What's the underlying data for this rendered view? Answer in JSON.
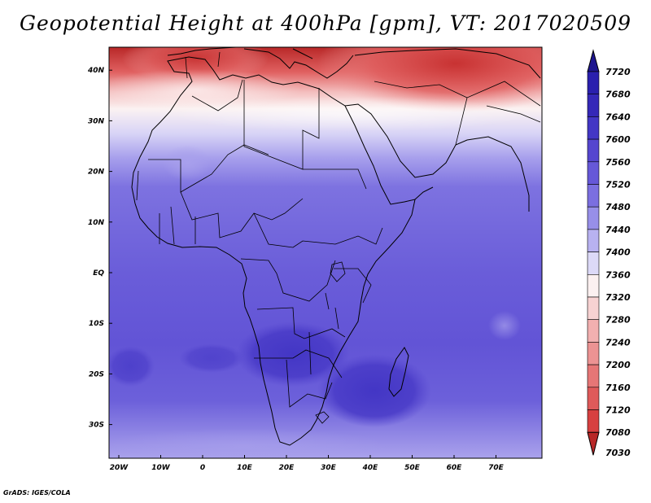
{
  "title": "Geopotential Height at 400hPa [gpm], VT: 2017020509",
  "footer": "GrADS: IGES/COLA",
  "map": {
    "variable": "Geopotential Height at 400hPa",
    "units": "gpm",
    "valid_time": "2017020509",
    "lon_range": [
      -25,
      80
    ],
    "lat_range": [
      -37,
      45
    ],
    "lat_labels": [
      {
        "lat": 40,
        "text": "40N"
      },
      {
        "lat": 30,
        "text": "30N"
      },
      {
        "lat": 20,
        "text": "20N"
      },
      {
        "lat": 10,
        "text": "10N"
      },
      {
        "lat": 0,
        "text": "EQ"
      },
      {
        "lat": -10,
        "text": "10S"
      },
      {
        "lat": -20,
        "text": "20S"
      },
      {
        "lat": -30,
        "text": "30S"
      }
    ],
    "lon_labels": [
      {
        "lon": -20,
        "text": "20W"
      },
      {
        "lon": -10,
        "text": "10W"
      },
      {
        "lon": 0,
        "text": "0"
      },
      {
        "lon": 10,
        "text": "10E"
      },
      {
        "lon": 20,
        "text": "20E"
      },
      {
        "lon": 30,
        "text": "30E"
      },
      {
        "lon": 40,
        "text": "40E"
      },
      {
        "lon": 50,
        "text": "50E"
      },
      {
        "lon": 60,
        "text": "60E"
      },
      {
        "lon": 70,
        "text": "70E"
      }
    ]
  },
  "colorbar": {
    "max_label": "7720",
    "min_label": "7030",
    "levels": [
      {
        "label": "7680",
        "color": "#2a20ae"
      },
      {
        "label": "7640",
        "color": "#3528b8"
      },
      {
        "label": "7600",
        "color": "#4336c5"
      },
      {
        "label": "7560",
        "color": "#5546cf"
      },
      {
        "label": "7520",
        "color": "#6658d8"
      },
      {
        "label": "7480",
        "color": "#7b6fe0"
      },
      {
        "label": "7440",
        "color": "#978fe8"
      },
      {
        "label": "7400",
        "color": "#b8b2f0"
      },
      {
        "label": "7360",
        "color": "#dcd9f7"
      },
      {
        "label": "7320",
        "color": "#fbf0f0"
      },
      {
        "label": "7280",
        "color": "#f7d2d2"
      },
      {
        "label": "7240",
        "color": "#f2b0b0"
      },
      {
        "label": "7200",
        "color": "#ec9393"
      },
      {
        "label": "7160",
        "color": "#e67676"
      },
      {
        "label": "7120",
        "color": "#df5a5a"
      },
      {
        "label": "7080",
        "color": "#d74040"
      }
    ],
    "top_color": "#1e168f",
    "bottom_color": "#b82828"
  }
}
